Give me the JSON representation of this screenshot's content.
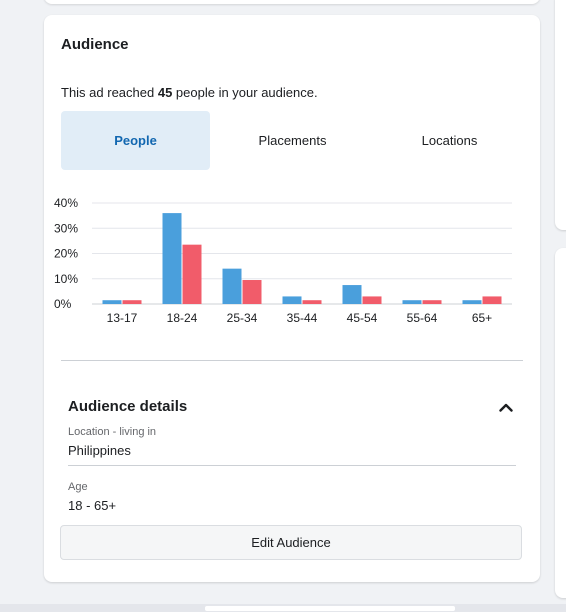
{
  "audience_card": {
    "title": "Audience",
    "reach_prefix": "This ad reached ",
    "reach_count": "45",
    "reach_suffix": " people in your audience.",
    "tabs": [
      {
        "label": "People",
        "active": true
      },
      {
        "label": "Placements",
        "active": false
      },
      {
        "label": "Locations",
        "active": false
      }
    ]
  },
  "chart_data": {
    "type": "bar",
    "categories": [
      "13-17",
      "18-24",
      "25-34",
      "35-44",
      "45-54",
      "55-64",
      "65+"
    ],
    "yticks": [
      "0%",
      "10%",
      "20%",
      "30%",
      "40%"
    ],
    "ylim": [
      0,
      40
    ],
    "grid": true,
    "series": [
      {
        "values": [
          1.5,
          36,
          14,
          3,
          7.5,
          1.5,
          1.5
        ],
        "color": "#4a9fdc"
      },
      {
        "values": [
          1.5,
          23.5,
          9.5,
          1.5,
          3,
          1.5,
          3
        ],
        "color": "#f15c6a"
      }
    ]
  },
  "details": {
    "title": "Audience details",
    "location_label": "Location - living in",
    "location_value": "Philippines",
    "age_label": "Age",
    "age_value": "18 - 65+",
    "edit_button": "Edit Audience"
  },
  "icons": {
    "collapse": "chevron-up-icon"
  }
}
